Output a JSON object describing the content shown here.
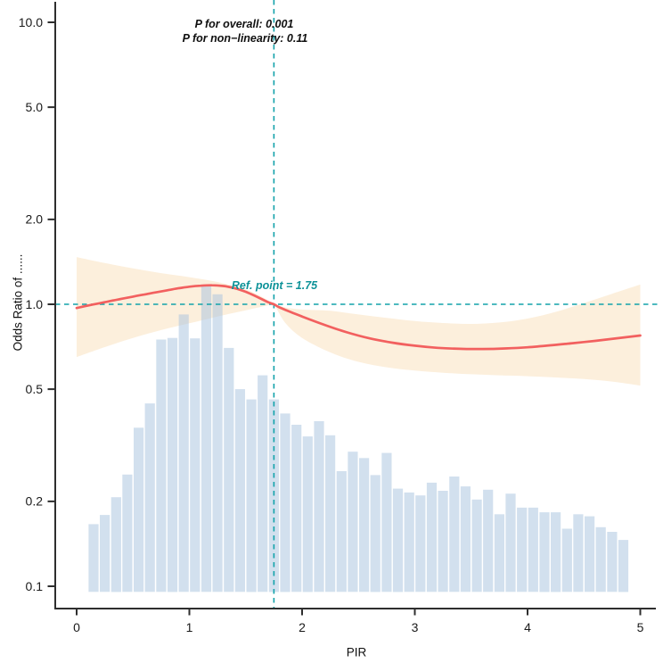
{
  "figure": {
    "background": "#ffffff",
    "description": "Restricted cubic spline plot of odds ratio vs PIR with 95% CI band and PIR distribution histogram"
  },
  "chart_data": {
    "type": "line",
    "subtype": "spline-with-confidence-band-and-histogram",
    "title": "",
    "xlabel": "PIR",
    "ylabel": "Odds Ratio of ......",
    "y_scale": "log10",
    "grid": false,
    "legend": false,
    "xlim": [
      -0.19,
      5.2
    ],
    "ylim": [
      0.09,
      11.5
    ],
    "x_ticks": [
      {
        "v": 0,
        "label": "0"
      },
      {
        "v": 1,
        "label": "1"
      },
      {
        "v": 2,
        "label": "2"
      },
      {
        "v": 3,
        "label": "3"
      },
      {
        "v": 4,
        "label": "4"
      },
      {
        "v": 5,
        "label": "5"
      }
    ],
    "y_ticks": [
      {
        "v": 10,
        "label": "10.0"
      },
      {
        "v": 5,
        "label": "5.0"
      },
      {
        "v": 2,
        "label": "2.0"
      },
      {
        "v": 1,
        "label": "1.0"
      },
      {
        "v": 0.5,
        "label": "0.5"
      },
      {
        "v": 0.2,
        "label": "0.2"
      },
      {
        "v": 0.1,
        "label": "0.1"
      }
    ],
    "annotations": {
      "p_overall_text": "P for overall: 0.001",
      "p_overall": "0.001",
      "p_nonlinearity_text": "P for non−linearity: 0.11",
      "p_nonlinearity": "0.11",
      "ref_point_text": "Ref. point = 1.75",
      "ref_point": 1.75
    },
    "reference_lines": {
      "horizontal_or": 1.0,
      "vertical_x": 1.75
    },
    "series": {
      "spline": {
        "name": "odds-ratio-spline",
        "points": [
          [
            0.0,
            0.97
          ],
          [
            0.1,
            0.99
          ],
          [
            0.2,
            1.008
          ],
          [
            0.3,
            1.027
          ],
          [
            0.4,
            1.046
          ],
          [
            0.5,
            1.065
          ],
          [
            0.6,
            1.083
          ],
          [
            0.7,
            1.102
          ],
          [
            0.8,
            1.12
          ],
          [
            0.9,
            1.139
          ],
          [
            1.0,
            1.154
          ],
          [
            1.1,
            1.164
          ],
          [
            1.2,
            1.168
          ],
          [
            1.3,
            1.161
          ],
          [
            1.4,
            1.141
          ],
          [
            1.5,
            1.107
          ],
          [
            1.6,
            1.063
          ],
          [
            1.7,
            1.017
          ],
          [
            1.75,
            1.0
          ],
          [
            1.8,
            0.975
          ],
          [
            1.9,
            0.938
          ],
          [
            2.0,
            0.905
          ],
          [
            2.2,
            0.845
          ],
          [
            2.4,
            0.795
          ],
          [
            2.6,
            0.757
          ],
          [
            2.8,
            0.731
          ],
          [
            3.0,
            0.713
          ],
          [
            3.2,
            0.701
          ],
          [
            3.4,
            0.695
          ],
          [
            3.6,
            0.694
          ],
          [
            3.8,
            0.697
          ],
          [
            4.0,
            0.704
          ],
          [
            4.2,
            0.715
          ],
          [
            4.4,
            0.728
          ],
          [
            4.6,
            0.742
          ],
          [
            4.8,
            0.758
          ],
          [
            5.0,
            0.775
          ]
        ]
      },
      "confidence_band": {
        "name": "95-percent-ci-band",
        "upper": [
          [
            0.0,
            1.47
          ],
          [
            0.25,
            1.4
          ],
          [
            0.5,
            1.34
          ],
          [
            0.75,
            1.29
          ],
          [
            1.0,
            1.248
          ],
          [
            1.25,
            1.2
          ],
          [
            1.5,
            1.128
          ],
          [
            1.6,
            1.085
          ],
          [
            1.7,
            1.032
          ],
          [
            1.75,
            1.003
          ],
          [
            1.85,
            0.975
          ],
          [
            2.0,
            0.958
          ],
          [
            2.25,
            0.948
          ],
          [
            2.5,
            0.92
          ],
          [
            2.75,
            0.895
          ],
          [
            3.0,
            0.872
          ],
          [
            3.25,
            0.858
          ],
          [
            3.5,
            0.852
          ],
          [
            3.75,
            0.862
          ],
          [
            4.0,
            0.89
          ],
          [
            4.25,
            0.94
          ],
          [
            4.5,
            1.01
          ],
          [
            4.75,
            1.09
          ],
          [
            5.0,
            1.175
          ]
        ],
        "lower": [
          [
            0.0,
            0.65
          ],
          [
            0.25,
            0.705
          ],
          [
            0.5,
            0.76
          ],
          [
            0.75,
            0.81
          ],
          [
            1.0,
            0.856
          ],
          [
            1.25,
            0.905
          ],
          [
            1.5,
            0.952
          ],
          [
            1.6,
            0.972
          ],
          [
            1.7,
            0.992
          ],
          [
            1.75,
            0.998
          ],
          [
            1.85,
            0.86
          ],
          [
            2.0,
            0.76
          ],
          [
            2.25,
            0.675
          ],
          [
            2.5,
            0.625
          ],
          [
            2.75,
            0.598
          ],
          [
            3.0,
            0.582
          ],
          [
            3.25,
            0.572
          ],
          [
            3.5,
            0.565
          ],
          [
            3.75,
            0.56
          ],
          [
            4.0,
            0.556
          ],
          [
            4.25,
            0.55
          ],
          [
            4.5,
            0.543
          ],
          [
            4.75,
            0.532
          ],
          [
            5.0,
            0.515
          ]
        ]
      },
      "histogram": {
        "name": "pir-distribution-histogram",
        "bin_width": 0.1,
        "first_center": 0.15,
        "baseline_or": 0.0955,
        "heights": [
          0.166,
          0.179,
          0.207,
          0.249,
          0.365,
          0.445,
          0.75,
          0.76,
          0.92,
          0.757,
          1.16,
          1.085,
          0.7,
          0.5,
          0.46,
          0.56,
          0.46,
          0.41,
          0.374,
          0.34,
          0.385,
          0.343,
          0.256,
          0.3,
          0.285,
          0.248,
          0.297,
          0.222,
          0.215,
          0.21,
          0.233,
          0.218,
          0.245,
          0.226,
          0.203,
          0.22,
          0.18,
          0.213,
          0.19,
          0.19,
          0.183,
          0.183,
          0.16,
          0.18,
          0.177,
          0.162,
          0.156,
          0.146
        ]
      }
    },
    "colors": {
      "spline": "#f2605f",
      "band": "#fcefdc",
      "bars": "#a8c3df",
      "bars_opacity": 0.52,
      "dashed_lines": "#12a2aa",
      "ref_text": "#0d9298",
      "axis": "#2e2e2e",
      "tick_text": "#1a1a1a",
      "annotation_text": "#101010"
    }
  }
}
